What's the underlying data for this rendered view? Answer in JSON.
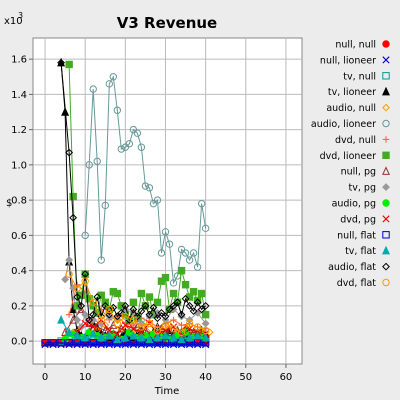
{
  "chart_data": {
    "type": "line",
    "title": "V3 Revenue",
    "xlabel": "Time",
    "ylabel": "$",
    "y_multiplier": "x10",
    "y_multiplier_exp": "3",
    "xlim": [
      -3,
      64
    ],
    "ylim": [
      -0.13,
      1.72
    ],
    "xticks": [
      0,
      10,
      20,
      30,
      40,
      50,
      60
    ],
    "yticks": [
      0.0,
      0.2,
      0.4,
      0.6,
      0.8,
      1.0,
      1.2,
      1.4,
      1.6
    ],
    "ytick_labels": [
      "0.0",
      "0.2",
      "0.4",
      "0.6",
      "0.8",
      "1.0",
      "1.2",
      "1.4",
      "1.6"
    ],
    "grid": true,
    "legend_position": "right",
    "series": [
      {
        "name": "null, null",
        "color": "#ff0000",
        "marker": "circle-filled",
        "x": [
          0,
          1,
          2,
          3,
          4,
          5,
          6,
          7,
          8,
          9,
          10,
          11,
          12,
          13,
          14,
          15,
          16,
          17,
          18,
          19,
          20,
          21,
          22,
          23,
          24,
          25,
          26,
          27,
          28,
          29,
          30,
          31,
          32,
          33,
          34,
          35,
          36,
          37,
          38,
          39,
          40
        ],
        "y": [
          -0.01,
          -0.01,
          -0.01,
          -0.01,
          -0.01,
          -0.01,
          -0.01,
          -0.01,
          -0.01,
          -0.01,
          -0.01,
          -0.01,
          -0.01,
          -0.01,
          -0.01,
          -0.01,
          -0.01,
          -0.01,
          -0.01,
          -0.01,
          -0.01,
          -0.01,
          -0.01,
          -0.01,
          -0.01,
          -0.01,
          -0.01,
          -0.01,
          -0.01,
          -0.01,
          -0.01,
          -0.01,
          -0.01,
          -0.01,
          -0.01,
          -0.01,
          -0.01,
          -0.01,
          -0.01,
          -0.01,
          -0.01
        ]
      },
      {
        "name": "null, lioneer",
        "color": "#0000cc",
        "marker": "x",
        "x": [
          0,
          2,
          4,
          6,
          8,
          10,
          12,
          14,
          16,
          18,
          20,
          22,
          24,
          26,
          28,
          30,
          32,
          34,
          36,
          38,
          40
        ],
        "y": [
          -0.02,
          -0.02,
          -0.02,
          -0.02,
          -0.02,
          -0.02,
          -0.02,
          -0.02,
          -0.02,
          -0.02,
          -0.02,
          -0.02,
          -0.02,
          -0.02,
          -0.02,
          -0.02,
          -0.02,
          -0.02,
          -0.02,
          -0.02,
          -0.02
        ]
      },
      {
        "name": "tv, null",
        "color": "#009999",
        "marker": "square",
        "x": [
          4,
          6,
          8,
          10,
          12,
          14,
          16,
          18,
          20,
          22,
          24,
          26,
          28,
          30,
          32,
          34,
          36,
          38,
          40
        ],
        "y": [
          0.0,
          0.03,
          0.01,
          0.02,
          0.01,
          0.03,
          0.02,
          0.01,
          0.03,
          0.02,
          0.01,
          0.02,
          0.03,
          0.02,
          0.01,
          0.03,
          0.02,
          0.03,
          0.02
        ]
      },
      {
        "name": "tv, lioneer",
        "color": "#000000",
        "marker": "triangle-filled",
        "x": [
          4,
          5,
          6,
          7,
          8,
          9,
          10,
          11,
          12,
          13,
          14,
          15,
          16,
          17,
          18,
          19,
          20,
          21,
          22,
          23,
          24,
          25,
          26,
          27,
          28,
          29,
          30,
          31,
          32,
          33,
          34,
          35,
          36,
          37,
          38,
          39,
          40
        ],
        "y": [
          1.58,
          1.3,
          0.45,
          0.18,
          0.06,
          0.03,
          0.02,
          0.05,
          0.1,
          0.07,
          0.04,
          0.03,
          0.02,
          0.04,
          0.03,
          0.02,
          0.05,
          0.03,
          0.02,
          0.04,
          0.06,
          0.03,
          0.02,
          0.05,
          0.08,
          0.04,
          0.03,
          0.06,
          0.04,
          0.02,
          0.05,
          0.07,
          0.04,
          0.03,
          0.05,
          0.06,
          0.04
        ]
      },
      {
        "name": "audio, null",
        "color": "#ff9900",
        "marker": "diamond",
        "x": [
          5,
          7,
          9,
          11,
          13,
          15,
          17,
          19,
          21,
          23,
          25,
          27,
          29,
          31,
          33,
          35,
          37,
          39,
          41
        ],
        "y": [
          0.02,
          0.05,
          0.08,
          0.12,
          0.06,
          0.09,
          0.04,
          0.07,
          0.1,
          0.05,
          0.08,
          0.04,
          0.06,
          0.09,
          0.05,
          0.07,
          0.04,
          0.06,
          0.05
        ]
      },
      {
        "name": "audio, lioneer",
        "color": "#669999",
        "marker": "circle",
        "x": [
          10,
          11,
          12,
          13,
          14,
          15,
          16,
          17,
          18,
          19,
          20,
          21,
          22,
          23,
          24,
          25,
          26,
          27,
          28,
          29,
          30,
          31,
          32,
          33,
          34,
          35,
          36,
          37,
          38,
          39,
          40
        ],
        "y": [
          0.6,
          1.0,
          1.43,
          1.02,
          0.46,
          0.77,
          1.46,
          1.5,
          1.31,
          1.09,
          1.1,
          1.12,
          1.2,
          1.18,
          1.1,
          0.88,
          0.87,
          0.78,
          0.8,
          0.5,
          0.62,
          0.55,
          0.33,
          0.37,
          0.52,
          0.5,
          0.46,
          0.5,
          0.42,
          0.78,
          0.64
        ]
      },
      {
        "name": "dvd, null",
        "color": "#ff6633",
        "marker": "plus",
        "x": [
          6,
          8,
          10,
          12,
          14,
          16,
          18,
          20,
          22,
          24,
          26,
          28,
          30,
          32,
          34,
          36,
          38,
          40
        ],
        "y": [
          0.15,
          0.32,
          0.28,
          0.22,
          0.18,
          0.12,
          0.14,
          0.1,
          0.09,
          0.13,
          0.11,
          0.08,
          0.1,
          0.12,
          0.09,
          0.1,
          0.08,
          0.07
        ]
      },
      {
        "name": "dvd, lioneer",
        "color": "#44aa22",
        "marker": "square-filled",
        "x": [
          6,
          7,
          8,
          9,
          10,
          11,
          12,
          13,
          14,
          15,
          16,
          17,
          18,
          19,
          20,
          21,
          22,
          23,
          24,
          25,
          26,
          27,
          28,
          29,
          30,
          31,
          32,
          33,
          34,
          35,
          36,
          37,
          38,
          39,
          40
        ],
        "y": [
          1.57,
          0.82,
          0.2,
          0.26,
          0.38,
          0.24,
          0.2,
          0.16,
          0.26,
          0.22,
          0.18,
          0.28,
          0.27,
          0.2,
          0.15,
          0.12,
          0.22,
          0.13,
          0.27,
          0.2,
          0.25,
          0.15,
          0.22,
          0.34,
          0.36,
          0.18,
          0.27,
          0.22,
          0.4,
          0.32,
          0.25,
          0.28,
          0.23,
          0.27,
          0.15
        ]
      },
      {
        "name": "null, pg",
        "color": "#993333",
        "marker": "triangle",
        "x": [
          5,
          7,
          9,
          11,
          13,
          15,
          17,
          19,
          21,
          23,
          25,
          27,
          29,
          31,
          33,
          35,
          37,
          39
        ],
        "y": [
          0.05,
          0.12,
          0.18,
          0.1,
          0.08,
          0.06,
          0.09,
          0.07,
          0.05,
          0.08,
          0.06,
          0.04,
          0.07,
          0.05,
          0.06,
          0.04,
          0.05,
          0.04
        ]
      },
      {
        "name": "tv, pg",
        "color": "#999999",
        "marker": "diamond-filled",
        "x": [
          5,
          6,
          7,
          8,
          9,
          10,
          12,
          14,
          16,
          18,
          20,
          22,
          24,
          26,
          28,
          30,
          32,
          34,
          36,
          38,
          40
        ],
        "y": [
          0.35,
          0.46,
          0.3,
          0.12,
          0.08,
          0.15,
          0.12,
          0.1,
          0.14,
          0.12,
          0.18,
          0.16,
          0.1,
          0.14,
          0.16,
          0.12,
          0.18,
          0.14,
          0.12,
          0.16,
          0.1
        ]
      },
      {
        "name": "audio, pg",
        "color": "#00ee00",
        "marker": "circle-filled",
        "x": [
          5,
          7,
          9,
          11,
          13,
          15,
          17,
          19,
          21,
          23,
          25,
          27,
          29,
          31,
          33,
          35,
          37,
          39
        ],
        "y": [
          0.01,
          0.04,
          0.02,
          0.05,
          0.03,
          0.02,
          0.04,
          0.01,
          0.05,
          0.02,
          0.03,
          0.04,
          0.02,
          0.01,
          0.03,
          0.05,
          0.02,
          0.03
        ]
      },
      {
        "name": "dvd, pg",
        "color": "#ee0000",
        "marker": "x",
        "x": [
          8,
          10,
          12,
          14,
          16,
          18,
          20,
          22,
          24,
          26,
          28,
          30,
          32,
          34,
          36,
          38,
          40
        ],
        "y": [
          0.05,
          0.1,
          0.08,
          0.12,
          0.06,
          0.04,
          0.09,
          0.07,
          0.05,
          0.1,
          0.04,
          0.06,
          0.08,
          0.03,
          0.07,
          0.05,
          0.04
        ]
      },
      {
        "name": "null, flat",
        "color": "#0000cc",
        "marker": "square",
        "x": [
          0,
          2,
          4,
          6,
          8,
          10,
          12,
          14,
          16,
          18,
          20,
          22,
          24,
          26,
          28,
          30,
          32,
          34,
          36,
          38,
          40
        ],
        "y": [
          -0.01,
          -0.01,
          -0.01,
          -0.01,
          -0.01,
          -0.01,
          -0.01,
          -0.01,
          -0.01,
          -0.01,
          -0.01,
          -0.01,
          -0.01,
          -0.01,
          -0.01,
          -0.01,
          -0.01,
          -0.01,
          -0.01,
          -0.01,
          -0.01
        ]
      },
      {
        "name": "tv, flat",
        "color": "#00aaaa",
        "marker": "triangle-filled",
        "x": [
          4,
          6,
          8,
          10,
          12,
          14,
          16,
          18,
          20,
          22,
          24,
          26,
          28,
          30,
          32,
          34,
          36,
          38,
          40
        ],
        "y": [
          0.12,
          0.05,
          0.03,
          0.02,
          0.04,
          0.02,
          0.03,
          0.01,
          0.02,
          0.03,
          0.02,
          0.01,
          0.02,
          0.03,
          0.02,
          0.01,
          0.02,
          0.03,
          0.02
        ]
      },
      {
        "name": "audio, flat",
        "color": "#000000",
        "marker": "diamond",
        "x": [
          4,
          6,
          7,
          8,
          9,
          10,
          11,
          12,
          13,
          14,
          15,
          16,
          17,
          18,
          19,
          20,
          21,
          22,
          23,
          24,
          25,
          26,
          27,
          28,
          29,
          30,
          31,
          32,
          33,
          34,
          35,
          36,
          37,
          38,
          39,
          40
        ],
        "y": [
          1.58,
          1.07,
          0.7,
          0.25,
          0.2,
          0.38,
          0.12,
          0.15,
          0.25,
          0.14,
          0.2,
          0.15,
          0.19,
          0.14,
          0.16,
          0.2,
          0.12,
          0.18,
          0.14,
          0.17,
          0.2,
          0.15,
          0.19,
          0.13,
          0.16,
          0.14,
          0.18,
          0.2,
          0.22,
          0.15,
          0.24,
          0.2,
          0.17,
          0.22,
          0.18,
          0.2
        ]
      },
      {
        "name": "dvd, flat",
        "color": "#ff9900",
        "marker": "circle",
        "x": [
          6,
          8,
          10,
          12,
          14,
          16,
          18,
          20,
          22,
          24,
          26,
          28,
          30,
          32,
          34,
          36,
          38,
          40
        ],
        "y": [
          0.38,
          0.3,
          0.34,
          0.22,
          0.12,
          0.18,
          0.1,
          0.14,
          0.12,
          0.08,
          0.1,
          0.06,
          0.09,
          0.07,
          0.05,
          0.1,
          0.08,
          0.06
        ]
      }
    ]
  }
}
